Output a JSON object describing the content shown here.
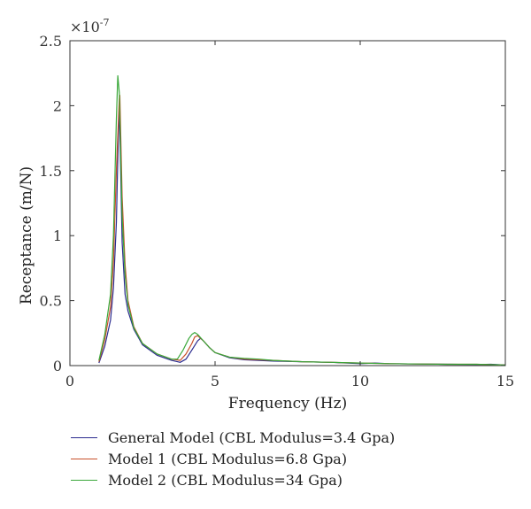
{
  "chart_data": {
    "type": "line",
    "xlabel": "Frequency (Hz)",
    "ylabel": "Receptance (m/N)",
    "y_multiplier": "×10",
    "y_exponent": "-7",
    "xlim": [
      0,
      15
    ],
    "ylim": [
      0,
      2.5
    ],
    "x_ticks": [
      "0",
      "5",
      "10",
      "15"
    ],
    "y_ticks": [
      "0",
      "0.5",
      "1",
      "1.5",
      "2",
      "2.5"
    ],
    "grid": false,
    "legend_position": "bottom",
    "series": [
      {
        "name": "General Model (CBL Modulus=3.4 Gpa)",
        "color": "#2b2b8f",
        "x": [
          1.0,
          1.2,
          1.4,
          1.5,
          1.6,
          1.65,
          1.7,
          1.75,
          1.8,
          1.9,
          2.0,
          2.2,
          2.5,
          3.0,
          3.5,
          3.8,
          4.0,
          4.2,
          4.4,
          4.5,
          4.6,
          4.8,
          5.0,
          5.5,
          6.0,
          6.5,
          7.0,
          8.0,
          9.0,
          10.0,
          10.5,
          11.0,
          12.0,
          13.0,
          14.0,
          14.5,
          15.0
        ],
        "y": [
          0.02,
          0.15,
          0.35,
          0.6,
          1.1,
          1.6,
          2.0,
          1.5,
          0.95,
          0.55,
          0.42,
          0.28,
          0.16,
          0.08,
          0.04,
          0.025,
          0.05,
          0.12,
          0.19,
          0.21,
          0.19,
          0.14,
          0.1,
          0.06,
          0.045,
          0.04,
          0.035,
          0.03,
          0.025,
          0.015,
          0.02,
          0.015,
          0.012,
          0.01,
          0.008,
          0.01,
          0.005
        ]
      },
      {
        "name": "Model 1 (CBL Modulus=6.8 Gpa)",
        "color": "#c8502a",
        "x": [
          1.0,
          1.2,
          1.4,
          1.5,
          1.6,
          1.7,
          1.72,
          1.8,
          1.9,
          2.0,
          2.2,
          2.5,
          3.0,
          3.5,
          3.8,
          4.0,
          4.2,
          4.3,
          4.4,
          4.6,
          4.8,
          5.0,
          5.5,
          6.0,
          6.5,
          7.0,
          8.0,
          9.0,
          10.0,
          11.0,
          12.0,
          13.0,
          14.0,
          15.0
        ],
        "y": [
          0.03,
          0.2,
          0.45,
          0.8,
          1.5,
          2.05,
          2.08,
          1.3,
          0.78,
          0.5,
          0.3,
          0.17,
          0.09,
          0.05,
          0.04,
          0.09,
          0.17,
          0.22,
          0.23,
          0.19,
          0.14,
          0.1,
          0.065,
          0.05,
          0.045,
          0.04,
          0.03,
          0.025,
          0.02,
          0.015,
          0.012,
          0.01,
          0.01,
          0.005
        ]
      },
      {
        "name": "Model 2 (CBL Modulus=34 Gpa)",
        "color": "#3aa83a",
        "x": [
          1.0,
          1.2,
          1.4,
          1.5,
          1.6,
          1.65,
          1.7,
          1.8,
          1.9,
          2.0,
          2.2,
          2.5,
          3.0,
          3.5,
          3.7,
          3.9,
          4.1,
          4.2,
          4.3,
          4.4,
          4.6,
          4.8,
          5.0,
          5.5,
          6.0,
          6.5,
          7.0,
          8.0,
          9.0,
          10.0,
          11.0,
          12.0,
          13.0,
          14.0,
          15.0
        ],
        "y": [
          0.04,
          0.24,
          0.55,
          1.0,
          1.9,
          2.23,
          2.1,
          1.15,
          0.7,
          0.47,
          0.29,
          0.17,
          0.09,
          0.05,
          0.05,
          0.12,
          0.21,
          0.24,
          0.255,
          0.24,
          0.19,
          0.14,
          0.1,
          0.065,
          0.055,
          0.05,
          0.04,
          0.03,
          0.025,
          0.02,
          0.015,
          0.012,
          0.01,
          0.01,
          0.005
        ]
      }
    ]
  }
}
